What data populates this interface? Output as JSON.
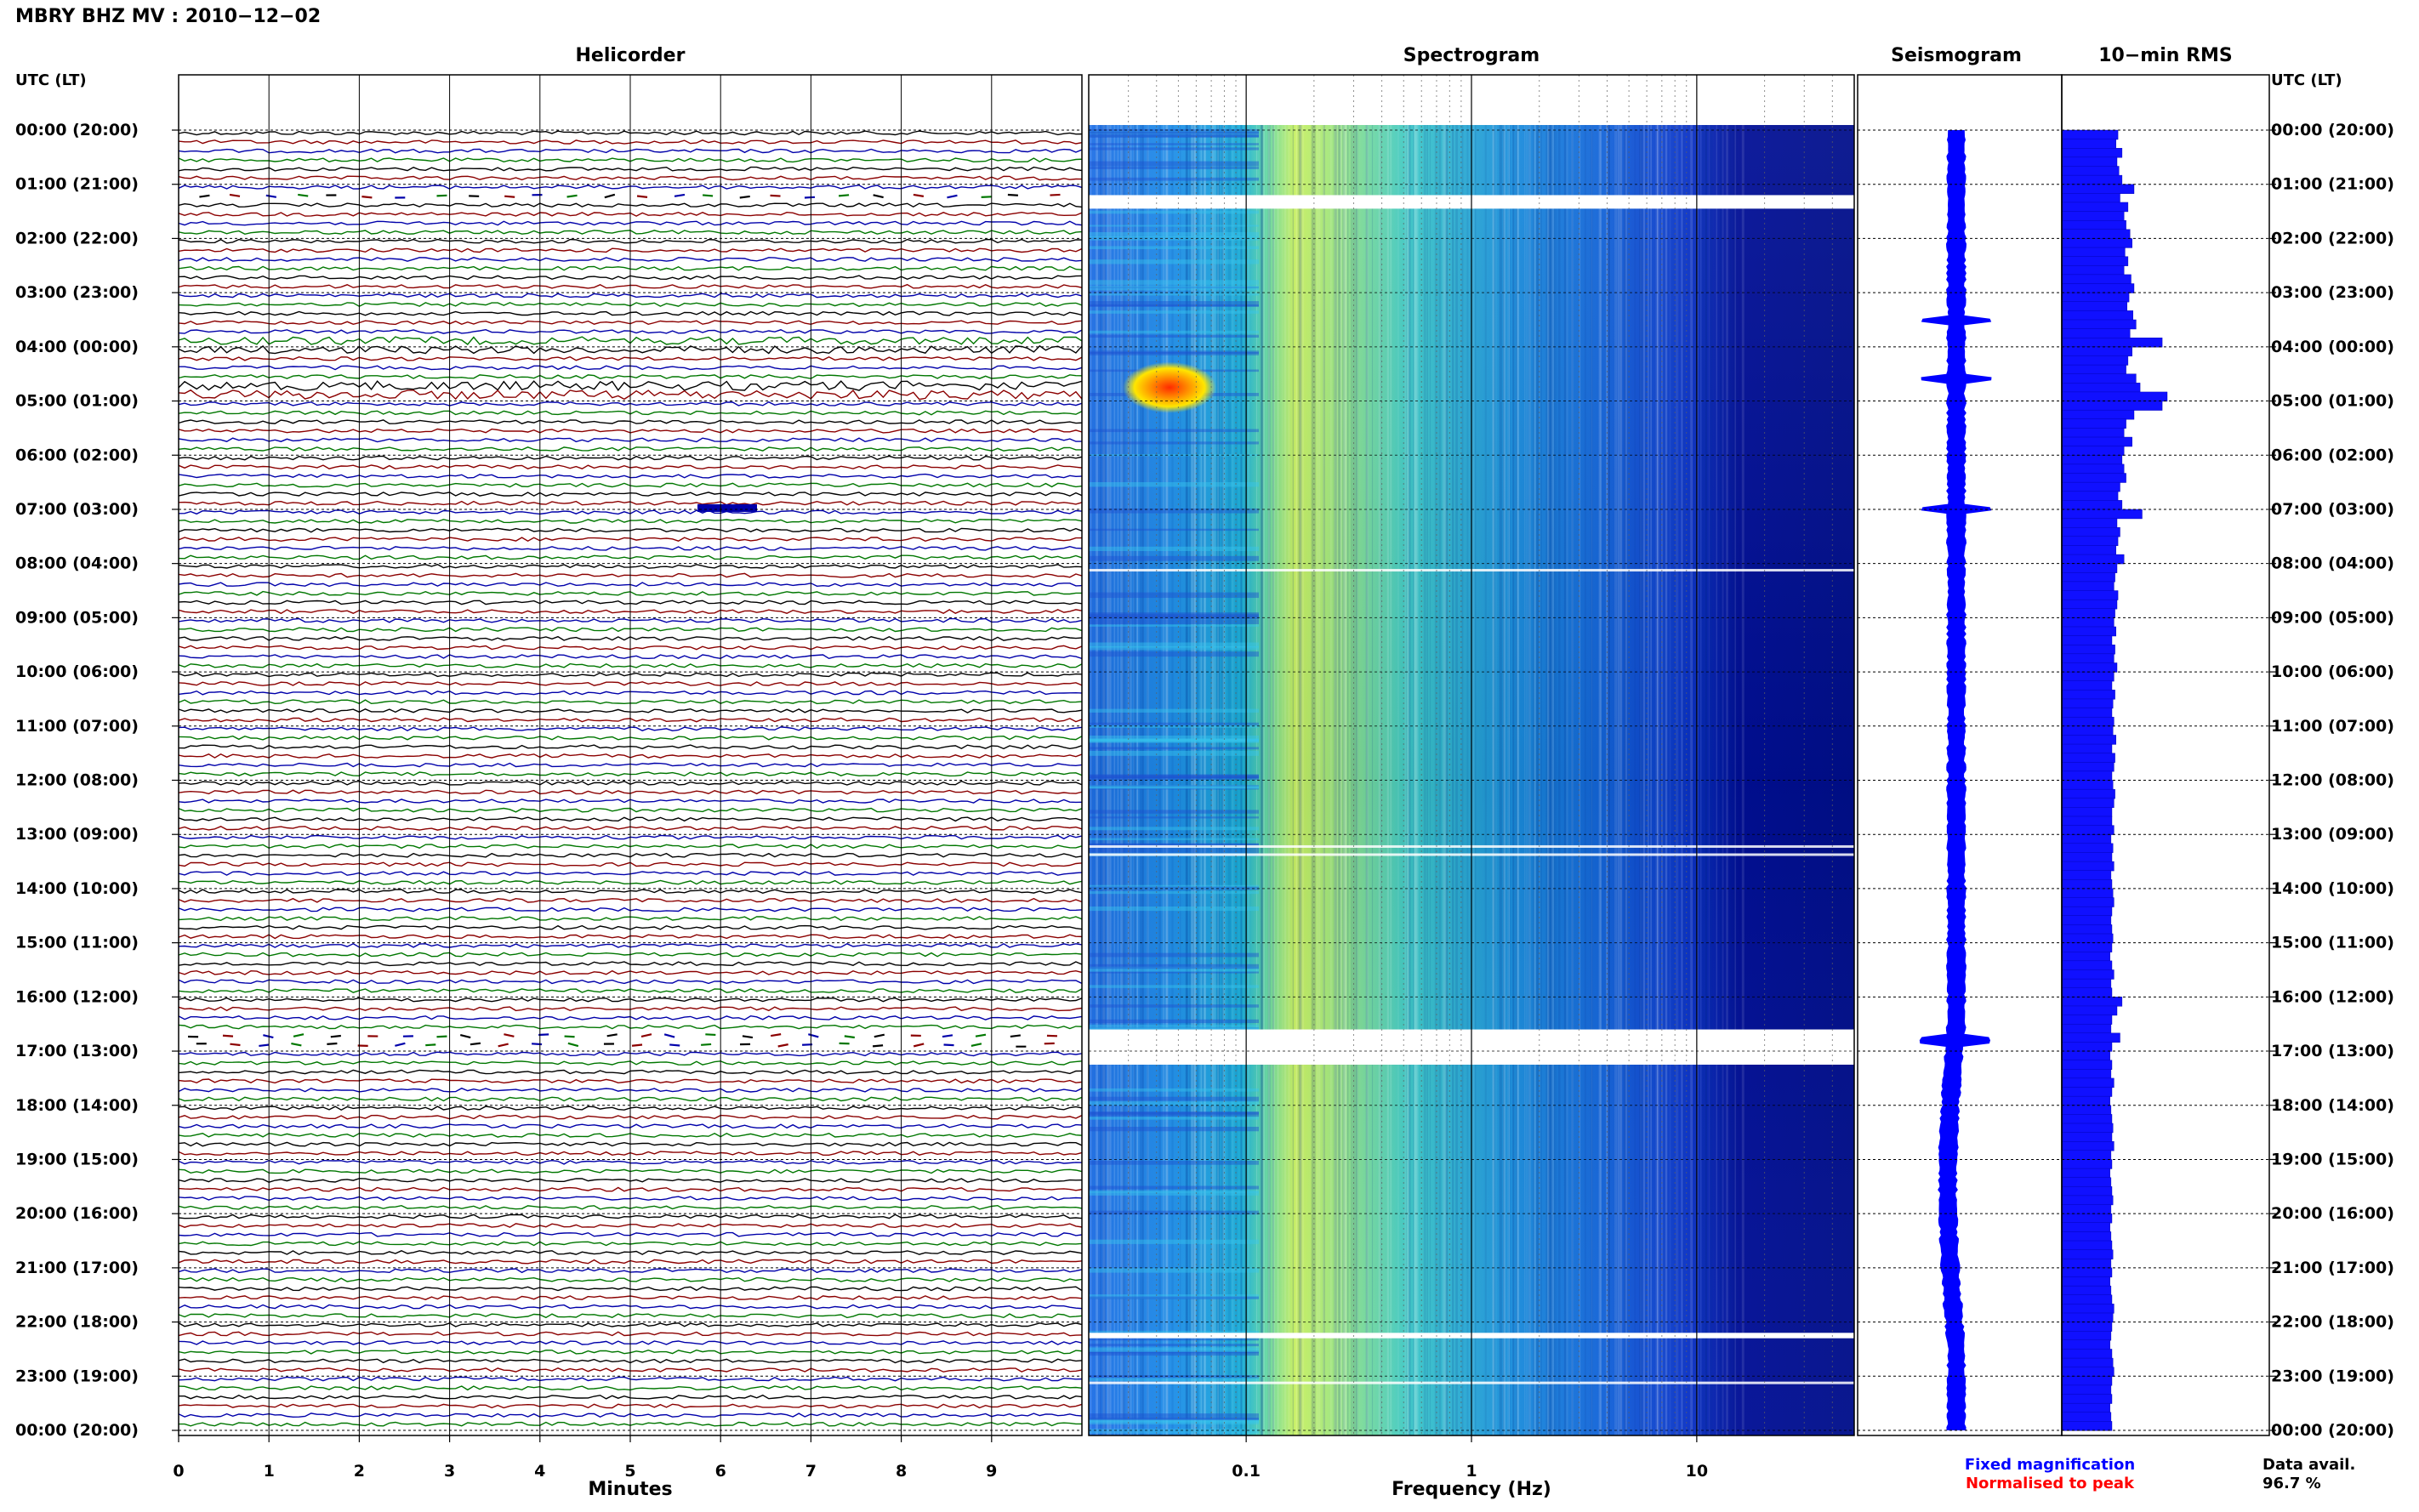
{
  "header": {
    "station_title": "MBRY BHZ MV : 2010−12−02"
  },
  "panels": {
    "helicorder": "Helicorder",
    "spectrogram": "Spectrogram",
    "seismogram": "Seismogram",
    "rms": "10−min RMS"
  },
  "axis": {
    "left_header": "UTC (LT)",
    "right_header": "UTC (LT)",
    "x_minutes_label": "Minutes",
    "x_frequency_label": "Frequency (Hz)"
  },
  "legend": {
    "fixed": "Fixed magnification",
    "normalised": "Normalised to peak",
    "fixed_color": "#0000ff",
    "normalised_color": "#ff0000"
  },
  "data_avail": {
    "label": "Data avail.",
    "value": "96.7 %"
  },
  "chart_data": [
    {
      "type": "line",
      "panel": "Helicorder",
      "xlabel": "Minutes",
      "xlim": [
        0,
        10
      ],
      "x_ticks": [
        "0",
        "1",
        "2",
        "3",
        "4",
        "5",
        "6",
        "7",
        "8",
        "9"
      ],
      "rows_per_hour": 6,
      "trace_colors": [
        "#000000",
        "#8b0000",
        "#0000aa",
        "#007700"
      ],
      "time_labels": [
        "00:00 (20:00)",
        "01:00 (21:00)",
        "02:00 (22:00)",
        "03:00 (23:00)",
        "04:00 (00:00)",
        "05:00 (01:00)",
        "06:00 (02:00)",
        "07:00 (03:00)",
        "08:00 (04:00)",
        "09:00 (05:00)",
        "10:00 (06:00)",
        "11:00 (07:00)",
        "12:00 (08:00)",
        "13:00 (09:00)",
        "14:00 (10:00)",
        "15:00 (11:00)",
        "16:00 (12:00)",
        "17:00 (13:00)",
        "18:00 (14:00)",
        "19:00 (15:00)",
        "20:00 (16:00)",
        "21:00 (17:00)",
        "22:00 (18:00)",
        "23:00 (19:00)",
        "00:00 (20:00)"
      ]
    },
    {
      "type": "heatmap",
      "panel": "Spectrogram",
      "xlabel": "Frequency (Hz)",
      "x_scale": "log",
      "xlim": [
        0.02,
        50
      ],
      "x_ticks": [
        {
          "value": 0.1,
          "label": "0.1"
        },
        {
          "value": 1,
          "label": "1"
        },
        {
          "value": 10,
          "label": "10"
        }
      ],
      "gaps_utc_hours": [
        [
          1.2,
          1.45
        ],
        [
          16.6,
          17.25
        ],
        [
          22.2,
          22.3
        ]
      ]
    },
    {
      "type": "line",
      "panel": "Seismogram",
      "events_utc_hours": [
        3.5,
        4.6,
        7.0,
        16.8
      ]
    },
    {
      "type": "bar",
      "panel": "10-min RMS",
      "orientation": "horizontal",
      "values": [
        0.56,
        0.54,
        0.6,
        0.55,
        0.57,
        0.6,
        0.72,
        0.58,
        0.66,
        0.62,
        0.64,
        0.68,
        0.7,
        0.63,
        0.66,
        0.62,
        0.69,
        0.72,
        0.67,
        0.65,
        0.71,
        0.74,
        0.68,
        1.0,
        0.7,
        0.66,
        0.64,
        0.74,
        0.78,
        1.05,
        1.0,
        0.72,
        0.64,
        0.62,
        0.7,
        0.62,
        0.6,
        0.62,
        0.64,
        0.58,
        0.56,
        0.6,
        0.8,
        0.55,
        0.58,
        0.56,
        0.54,
        0.62,
        0.55,
        0.53,
        0.52,
        0.56,
        0.55,
        0.53,
        0.52,
        0.54,
        0.5,
        0.53,
        0.52,
        0.55,
        0.52,
        0.5,
        0.53,
        0.51,
        0.5,
        0.52,
        0.51,
        0.54,
        0.5,
        0.53,
        0.52,
        0.5,
        0.51,
        0.53,
        0.52,
        0.5,
        0.5,
        0.52,
        0.49,
        0.51,
        0.5,
        0.52,
        0.49,
        0.5,
        0.51,
        0.52,
        0.5,
        0.49,
        0.5,
        0.51,
        0.5,
        0.48,
        0.5,
        0.52,
        0.49,
        0.5,
        0.6,
        0.55,
        0.5,
        0.49,
        0.58,
        0.5,
        0.48,
        0.5,
        0.49,
        0.52,
        0.5,
        0.48,
        0.49,
        0.5,
        0.51,
        0.5,
        0.52,
        0.49,
        0.5,
        0.48,
        0.49,
        0.5,
        0.51,
        0.49,
        0.5,
        0.48,
        0.49,
        0.5,
        0.51,
        0.49,
        0.5,
        0.48,
        0.49,
        0.5,
        0.52,
        0.51,
        0.5,
        0.49,
        0.48,
        0.5,
        0.51,
        0.52,
        0.5,
        0.49,
        0.5,
        0.48,
        0.49,
        0.5
      ]
    }
  ]
}
